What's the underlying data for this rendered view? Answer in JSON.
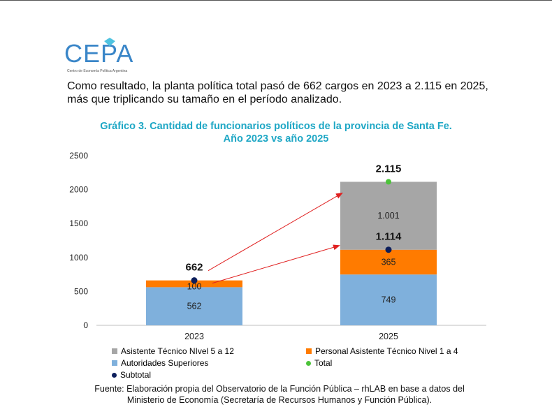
{
  "brand": {
    "logo_text": "CEPA",
    "logo_subtitle": "Centro de Economía Política Argentina",
    "logo_color": "#3a86c8"
  },
  "intro_text": "Como resultado, la planta política total pasó de 662 cargos en 2023 a 2.115 en 2025, más que triplicando su tamaño en el período analizado.",
  "source_text": "Fuente: Elaboración propia del Observatorio de la Función Pública – rhLAB en base a datos del Ministerio de Economía (Secretaría de Recursos Humanos y Función Pública).",
  "chart_data": {
    "type": "bar",
    "stacked": true,
    "title_line1": "Gráfico 3. Cantidad de funcionarios políticos de la provincia de Santa Fe.",
    "title_line2": "Año 2023 vs año 2025",
    "categories": [
      "2023",
      "2025"
    ],
    "ylim": [
      0,
      2500
    ],
    "yticks": [
      "0",
      "500",
      "1000",
      "1500",
      "2000",
      "2500"
    ],
    "series": [
      {
        "name": "Autoridades Superiores",
        "values": [
          562,
          749
        ],
        "labels": [
          "562",
          "749"
        ],
        "color": "#7fb0dc"
      },
      {
        "name": "Personal Asistente Técnico Nivel 1 a 4",
        "values": [
          100,
          365
        ],
        "labels": [
          "100",
          "365"
        ],
        "color": "#ff7b00"
      },
      {
        "name": "Asistente Técnico NIvel 5 a 12",
        "values": [
          0,
          1001
        ],
        "labels": [
          "",
          "1.001"
        ],
        "color": "#a6a6a6"
      }
    ],
    "subtotal": {
      "name": "Subtotal",
      "values": [
        662,
        1114
      ],
      "labels": [
        "662",
        "1.114"
      ],
      "color": "#0d1f5c"
    },
    "total": {
      "name": "Total",
      "values": [
        662,
        2115
      ],
      "labels": [
        "",
        "2.115"
      ],
      "color": "#4cc33a"
    },
    "arrow_color": "#e02020",
    "legend": [
      {
        "label": "Asistente Técnico NIvel 5 a 12",
        "color": "#a6a6a6",
        "marker": "square"
      },
      {
        "label": "Personal Asistente Técnico Nivel 1 a 4",
        "color": "#ff7b00",
        "marker": "square"
      },
      {
        "label": "Autoridades Superiores",
        "color": "#7fb0dc",
        "marker": "square"
      },
      {
        "label": "Total",
        "color": "#4cc33a",
        "marker": "dot"
      },
      {
        "label": "Subtotal",
        "color": "#0d1f5c",
        "marker": "dot"
      }
    ]
  }
}
